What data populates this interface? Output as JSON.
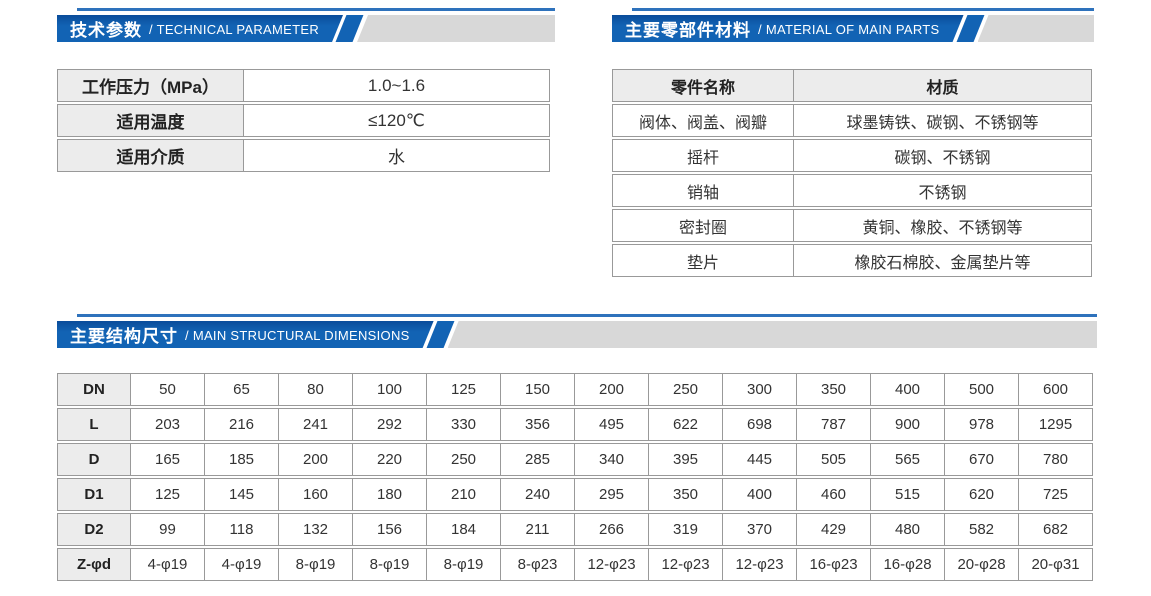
{
  "colors": {
    "header_blue": "#1263b4",
    "header_blue_dark": "#0a4c9a",
    "header_gray_bar": "#d8d8d8",
    "header_accent_line": "#2e72bc",
    "cell_border": "#999999",
    "label_cell_bg": "#ececec",
    "text": "#333333"
  },
  "technical": {
    "title_zh": "技术参数",
    "title_en": "/ TECHNICAL PARAMETER",
    "rows": [
      {
        "label": "工作压力（MPa）",
        "value": "1.0~1.6"
      },
      {
        "label": "适用温度",
        "value": "≤120℃"
      },
      {
        "label": "适用介质",
        "value": "水"
      }
    ]
  },
  "materials": {
    "title_zh": "主要零部件材料",
    "title_en": "/ MATERIAL OF MAIN PARTS",
    "col_part": "零件名称",
    "col_material": "材质",
    "rows": [
      {
        "part": "阀体、阀盖、阀瓣",
        "material": "球墨铸铁、碳钢、不锈钢等"
      },
      {
        "part": "摇杆",
        "material": "碳钢、不锈钢"
      },
      {
        "part": "销轴",
        "material": "不锈钢"
      },
      {
        "part": "密封圈",
        "material": "黄铜、橡胶、不锈钢等"
      },
      {
        "part": "垫片",
        "material": "橡胶石棉胶、金属垫片等"
      }
    ]
  },
  "dimensions": {
    "title_zh": "主要结构尺寸",
    "title_en": "/ MAIN STRUCTURAL DIMENSIONS",
    "rows": [
      {
        "h": "DN",
        "c": [
          "50",
          "65",
          "80",
          "100",
          "125",
          "150",
          "200",
          "250",
          "300",
          "350",
          "400",
          "500",
          "600"
        ]
      },
      {
        "h": "L",
        "c": [
          "203",
          "216",
          "241",
          "292",
          "330",
          "356",
          "495",
          "622",
          "698",
          "787",
          "900",
          "978",
          "1295"
        ]
      },
      {
        "h": "D",
        "c": [
          "165",
          "185",
          "200",
          "220",
          "250",
          "285",
          "340",
          "395",
          "445",
          "505",
          "565",
          "670",
          "780"
        ]
      },
      {
        "h": "D1",
        "c": [
          "125",
          "145",
          "160",
          "180",
          "210",
          "240",
          "295",
          "350",
          "400",
          "460",
          "515",
          "620",
          "725"
        ]
      },
      {
        "h": "D2",
        "c": [
          "99",
          "118",
          "132",
          "156",
          "184",
          "211",
          "266",
          "319",
          "370",
          "429",
          "480",
          "582",
          "682"
        ]
      },
      {
        "h": "Z-φd",
        "c": [
          "4-φ19",
          "4-φ19",
          "8-φ19",
          "8-φ19",
          "8-φ19",
          "8-φ23",
          "12-φ23",
          "12-φ23",
          "12-φ23",
          "16-φ23",
          "16-φ28",
          "20-φ28",
          "20-φ31"
        ]
      }
    ]
  }
}
